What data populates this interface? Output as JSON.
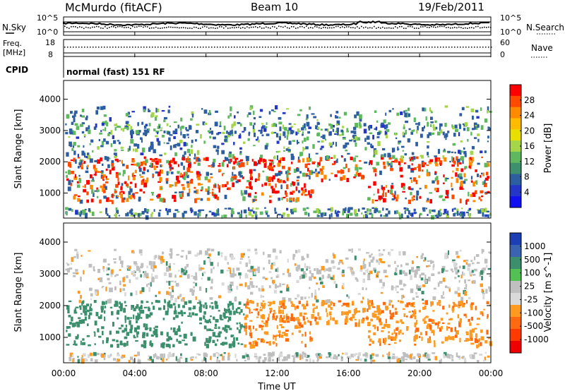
{
  "header": {
    "station": "McMurdo (fitACF)",
    "beam": "Beam 10",
    "date": "19/Feb/2011"
  },
  "top_panels": {
    "nsky_label": "N.Sky",
    "nsearch_label": "N.Search",
    "noise_ticks_left": [
      "10^5",
      "10^0"
    ],
    "noise_ticks_right": [
      "10^5",
      "10^0"
    ],
    "freq_label_1": "Freq.",
    "freq_label_2": "[MHz]",
    "freq_ticks": [
      "18",
      "8"
    ],
    "nave_label": "Nave",
    "nave_ticks": [
      "60",
      "0"
    ],
    "cpid_label": "CPID",
    "cpid_text": "normal (fast) 151 RF"
  },
  "chart_data": [
    {
      "type": "heatmap",
      "name": "power",
      "ylabel": "Slant Range [km]",
      "yticks": [
        "1000",
        "2000",
        "3000",
        "4000"
      ],
      "ylim": [
        200,
        4600
      ],
      "colorbar_label": "Power [dB]",
      "colorbar_ticks": [
        "28",
        "24",
        "20",
        "16",
        "12",
        "8",
        "4"
      ],
      "colorbar_colors": [
        "#ff0000",
        "#ff4a00",
        "#ff8a00",
        "#ffbb00",
        "#e8df00",
        "#a5d64a",
        "#5fb85f",
        "#3e8f6e",
        "#2c5ea0",
        "#2436c8",
        "#1010f0"
      ],
      "grid": false
    },
    {
      "type": "heatmap",
      "name": "velocity",
      "ylabel": "Slant Range [km]",
      "yticks": [
        "1000",
        "2000",
        "3000",
        "4000"
      ],
      "ylim": [
        200,
        4600
      ],
      "xlabel": "Time UT",
      "xticks": [
        "00:00",
        "04:00",
        "08:00",
        "12:00",
        "16:00",
        "20:00",
        "00:00"
      ],
      "colorbar_label": "Velocity [m s^-1]",
      "colorbar_ticks": [
        "1000",
        "500",
        "100",
        "25",
        "-25",
        "-100",
        "-500",
        "-1000"
      ],
      "colorbar_colors": [
        "#1d3fb5",
        "#3a64b0",
        "#3c8f6d",
        "#52c052",
        "#bfbfbf",
        "#d9d9d9",
        "#ff9a20",
        "#ff6a10",
        "#ff3a00",
        "#ee0000"
      ],
      "grid": false
    }
  ]
}
